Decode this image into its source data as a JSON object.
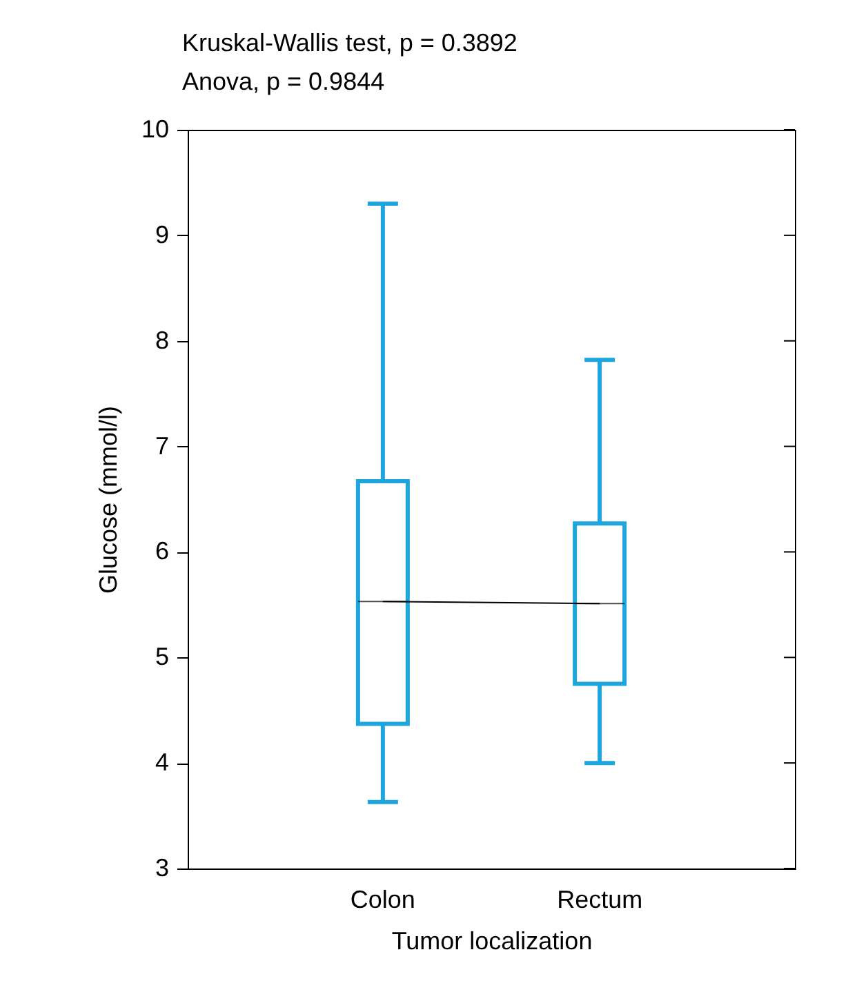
{
  "chart_data": {
    "type": "box",
    "annotations": [
      "Kruskal-Wallis test, p = 0.3892",
      "Anova, p = 0.9844"
    ],
    "xlabel": "Tumor localization",
    "ylabel": "Glucose (mmol/l)",
    "categories": [
      "Colon",
      "Rectum"
    ],
    "ylim": [
      3,
      10
    ],
    "yticks": [
      3,
      4,
      5,
      6,
      7,
      8,
      9,
      10
    ],
    "grid": false,
    "series": [
      {
        "type": "box",
        "color": "#1ea5dc",
        "boxes": [
          {
            "low": 3.63,
            "q1": 4.37,
            "median": 5.53,
            "q3": 6.67,
            "high": 9.3
          },
          {
            "low": 4.0,
            "q1": 4.75,
            "median": 5.51,
            "q3": 6.27,
            "high": 7.82
          }
        ]
      },
      {
        "type": "line",
        "color": "#000000",
        "marker": "none",
        "values": [
          5.53,
          5.51
        ]
      }
    ]
  }
}
